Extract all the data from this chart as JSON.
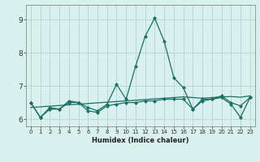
{
  "title": "",
  "xlabel": "Humidex (Indice chaleur)",
  "background_color": "#d8f0ee",
  "grid_color": "#b8d8d4",
  "line_color": "#1a6e64",
  "x": [
    0,
    1,
    2,
    3,
    4,
    5,
    6,
    7,
    8,
    9,
    10,
    11,
    12,
    13,
    14,
    15,
    16,
    17,
    18,
    19,
    20,
    21,
    22,
    23
  ],
  "curve1": [
    6.5,
    6.05,
    6.35,
    6.3,
    6.55,
    6.5,
    6.35,
    6.25,
    6.45,
    7.05,
    6.6,
    7.6,
    8.5,
    9.05,
    8.35,
    7.25,
    6.95,
    6.3,
    6.6,
    6.6,
    6.7,
    6.5,
    6.4,
    6.65
  ],
  "curve2": [
    6.5,
    6.05,
    6.3,
    6.3,
    6.5,
    6.5,
    6.25,
    6.2,
    6.4,
    6.45,
    6.5,
    6.5,
    6.55,
    6.55,
    6.6,
    6.6,
    6.6,
    6.3,
    6.55,
    6.6,
    6.65,
    6.45,
    6.05,
    6.65
  ],
  "curve3": [
    6.35,
    6.37,
    6.39,
    6.41,
    6.43,
    6.45,
    6.47,
    6.49,
    6.51,
    6.53,
    6.55,
    6.57,
    6.59,
    6.61,
    6.63,
    6.65,
    6.67,
    6.65,
    6.63,
    6.65,
    6.67,
    6.68,
    6.66,
    6.7
  ],
  "ylim": [
    5.78,
    9.45
  ],
  "yticks": [
    6,
    7,
    8,
    9
  ],
  "xtick_labels": [
    "0",
    "1",
    "2",
    "3",
    "4",
    "5",
    "6",
    "7",
    "8",
    "9",
    "10",
    "11",
    "12",
    "13",
    "14",
    "15",
    "16",
    "17",
    "18",
    "19",
    "20",
    "21",
    "22",
    "23"
  ]
}
